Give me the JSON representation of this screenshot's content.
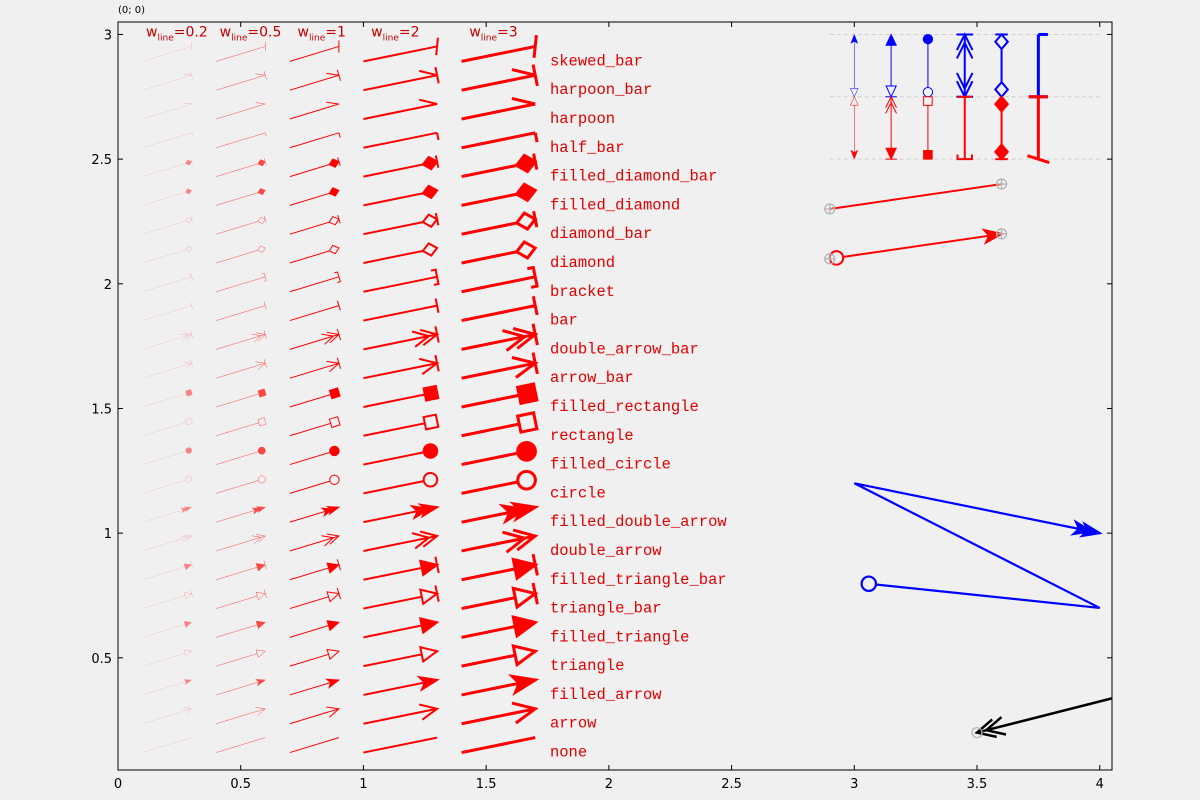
{
  "corner_label": "(0; 0)",
  "colors": {
    "red": "#ff0000",
    "blue": "#0000ff",
    "black": "#000000",
    "marker_gray": "#b4b4b4",
    "background": "#f0f0f0",
    "label_color": "#e00000"
  },
  "chart_data": {
    "type": "line",
    "xlim": [
      0,
      4.05
    ],
    "ylim": [
      0.05,
      3.05
    ],
    "x_ticks": [
      0,
      0.5,
      1,
      1.5,
      2,
      2.5,
      3,
      3.5,
      4
    ],
    "x_tick_labels": [
      "0",
      "0.5",
      "1",
      "1.5",
      "2",
      "2.5",
      "3",
      "3.5",
      "4"
    ],
    "y_ticks": [
      0.5,
      1,
      1.5,
      2,
      2.5,
      3
    ],
    "y_tick_labels": [
      "0.5",
      "1",
      "1.5",
      "2",
      "2.5",
      "3"
    ],
    "grid": false,
    "column_headers": [
      {
        "prefix": "w",
        "sub": "line",
        "suffix": "=0.2",
        "x": 0.12,
        "width": 0.2
      },
      {
        "prefix": "w",
        "sub": "line",
        "suffix": "=0.5",
        "x": 0.42,
        "width": 0.5
      },
      {
        "prefix": "w",
        "sub": "line",
        "suffix": "=1",
        "x": 0.71,
        "width": 1
      },
      {
        "prefix": "w",
        "sub": "line",
        "suffix": "=2",
        "x": 1.01,
        "width": 2
      },
      {
        "prefix": "w",
        "sub": "line",
        "suffix": "=3",
        "x": 1.41,
        "width": 3
      }
    ],
    "arrow_styles": [
      "none",
      "arrow",
      "filled_arrow",
      "triangle",
      "filled_triangle",
      "triangle_bar",
      "filled_triangle_bar",
      "double_arrow",
      "filled_double_arrow",
      "circle",
      "filled_circle",
      "rectangle",
      "filled_rectangle",
      "arrow_bar",
      "double_arrow_bar",
      "bar",
      "bracket",
      "diamond",
      "diamond_bar",
      "filled_diamond",
      "filled_diamond_bar",
      "half_bar",
      "harpoon",
      "harpoon_bar",
      "skewed_bar"
    ],
    "style_row_y_start": 0.12,
    "style_row_y_step": 0.1155,
    "vertical_examples": {
      "y_top": 3.0,
      "y_bottom": 2.5,
      "y_mid": 2.75,
      "guide_lines_y": [
        3.0,
        2.75,
        2.5
      ],
      "columns_x": [
        3.0,
        3.15,
        3.3,
        3.45,
        3.6,
        3.75
      ]
    },
    "gray_marker_lines": [
      {
        "x1": 2.9,
        "y1": 2.3,
        "x2": 3.6,
        "y2": 2.4,
        "start": "none",
        "end": "none"
      },
      {
        "x1": 2.9,
        "y1": 2.1,
        "x2": 3.6,
        "y2": 2.2,
        "start": "circle",
        "end": "filled_arrow"
      }
    ],
    "blue_polyline": {
      "points": [
        [
          3.03,
          0.8
        ],
        [
          4.0,
          0.7
        ],
        [
          3.0,
          1.2
        ],
        [
          4.0,
          1.0
        ]
      ],
      "start": "circle",
      "end": "filled_double_arrow"
    },
    "black_line": {
      "x1": 3.5,
      "y1": 0.2,
      "x2": 4.1,
      "y2": 0.35,
      "start": "double_arrow"
    }
  }
}
